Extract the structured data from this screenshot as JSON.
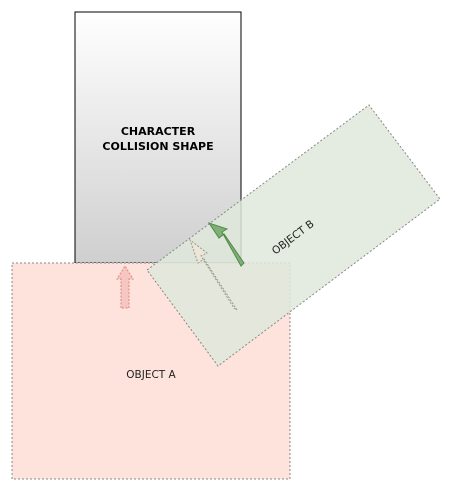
{
  "character": {
    "label_line1": "CHARACTER",
    "label_line2": "COLLISION SHAPE"
  },
  "object_a": {
    "label": "OBJECT A",
    "fill": "#fde3db",
    "stroke": "#888888"
  },
  "object_b": {
    "label": "OBJECT B",
    "fill": "#dfe9dc",
    "stroke": "#888888"
  },
  "arrows": {
    "red_fill": "#f6c7c2",
    "red_stroke": "#d9867f",
    "green_fill": "#7fb076",
    "green_stroke": "#4e8a45",
    "ghost_fill": "#ece6d8",
    "ghost_stroke": "#9a9a8a"
  }
}
